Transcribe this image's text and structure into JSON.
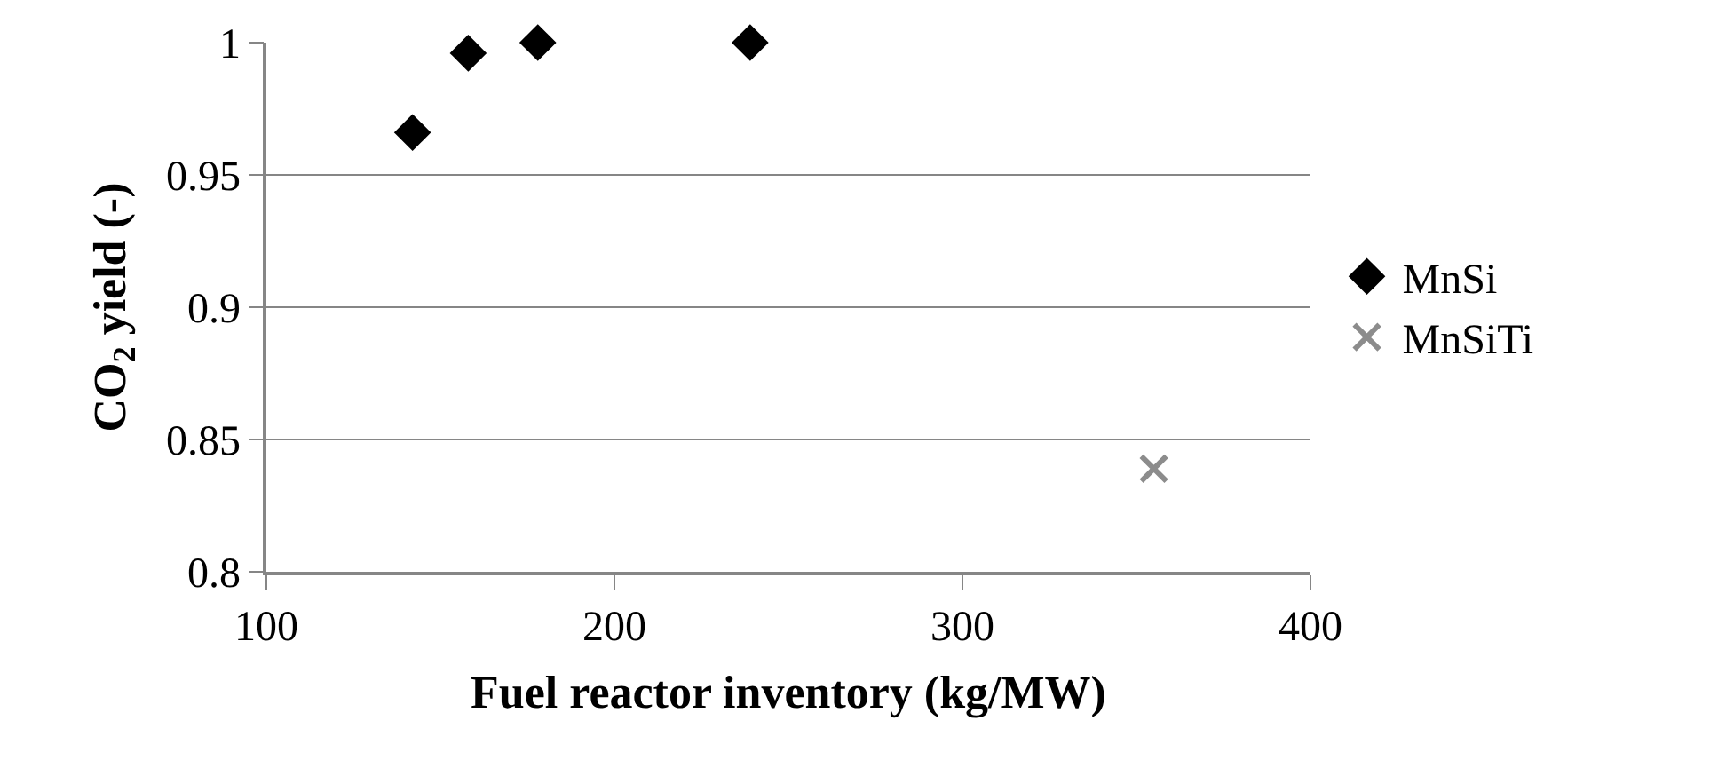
{
  "chart_data": {
    "type": "scatter",
    "xlabel": "Fuel reactor inventory (kg/MW)",
    "ylabel": "CO$_{2}$ yield (-)",
    "xlim": [
      100,
      400
    ],
    "xticks": [
      100,
      200,
      300,
      400
    ],
    "ylim": [
      0.8,
      1
    ],
    "yticks": [
      0.8,
      0.85,
      0.9,
      0.95,
      1
    ],
    "grid": "y",
    "legend": "right",
    "series": [
      {
        "name": "MnSi",
        "color": "#000000",
        "marker": "diamond",
        "x": [
          142,
          158,
          178,
          239
        ],
        "values": [
          0.966,
          0.996,
          1.0,
          1.0
        ]
      },
      {
        "name": "MnSiTi",
        "color": "#8c8c8c",
        "marker": "cross",
        "x": [
          355
        ],
        "values": [
          0.839
        ]
      }
    ]
  }
}
